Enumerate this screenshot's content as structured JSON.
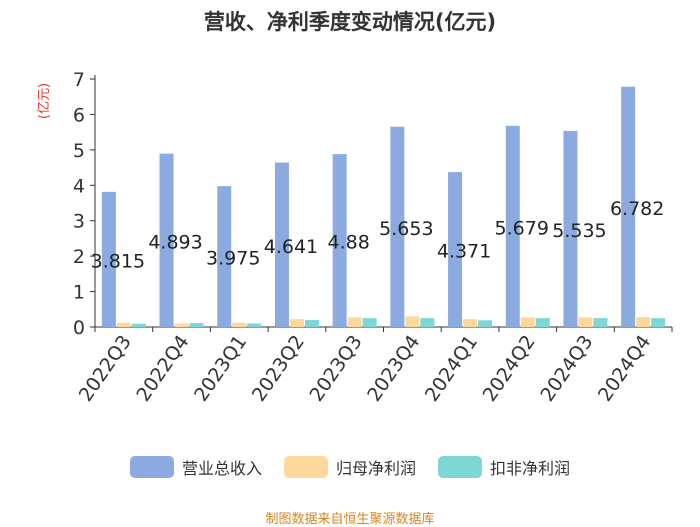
{
  "colors": {
    "revenue": "#8aaae0",
    "parent_net_profit": "#fdd89a",
    "deducted_net_profit": "#7ed6d6",
    "axis": "#333333",
    "unit_label": "#e0342c",
    "source": "#d4861f"
  },
  "footer": {
    "source": "制图数据来自恒生聚源数据库"
  },
  "chart_data": {
    "type": "bar",
    "title": "营收、净利季度变动情况(亿元)",
    "ylabel": "(亿元)",
    "xlabel": "",
    "ylim": [
      0,
      7
    ],
    "yticks": [
      "0",
      "1",
      "2",
      "3",
      "4",
      "5",
      "6",
      "7"
    ],
    "grid": false,
    "legend_position": "bottom",
    "categories": [
      "2022Q3",
      "2022Q4",
      "2023Q1",
      "2023Q2",
      "2023Q3",
      "2023Q4",
      "2024Q1",
      "2024Q2",
      "2024Q3",
      "2024Q4"
    ],
    "series": [
      {
        "name": "营业总收入",
        "values": [
          3.815,
          4.893,
          3.975,
          4.641,
          4.88,
          5.653,
          4.371,
          5.679,
          5.535,
          6.782
        ],
        "data_labels": [
          "3.815",
          "4.893",
          "3.975",
          "4.641",
          "4.88",
          "5.653",
          "4.371",
          "5.679",
          "5.535",
          "6.782"
        ]
      },
      {
        "name": "归母净利润",
        "values": [
          0.12,
          0.1,
          0.12,
          0.22,
          0.27,
          0.3,
          0.22,
          0.27,
          0.27,
          0.28
        ]
      },
      {
        "name": "扣非净利润",
        "values": [
          0.09,
          0.11,
          0.1,
          0.2,
          0.25,
          0.25,
          0.19,
          0.25,
          0.25,
          0.25
        ]
      }
    ]
  }
}
